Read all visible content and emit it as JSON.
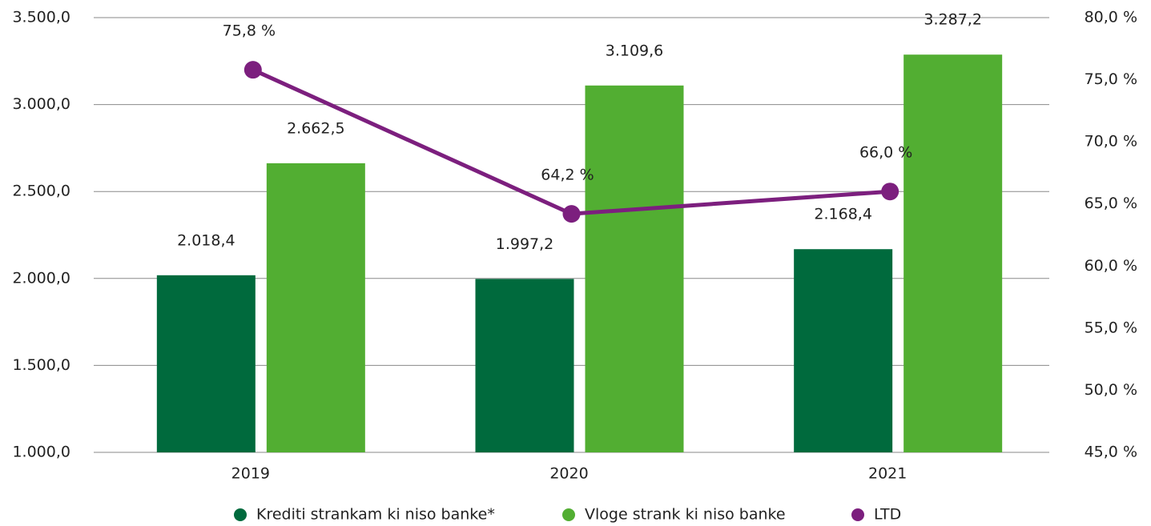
{
  "chart_data": {
    "type": "bar",
    "categories": [
      "2019",
      "2020",
      "2021"
    ],
    "series": [
      {
        "name": "Krediti strankam ki niso banke*",
        "color": "#006a3d",
        "values": [
          2018.4,
          1997.2,
          2168.4
        ],
        "value_labels": [
          "2.018,4",
          "1.997,2",
          "2.168,4"
        ]
      },
      {
        "name": "Vloge strank ki niso banke",
        "color": "#52ae32",
        "values": [
          2662.5,
          3109.6,
          3287.2
        ],
        "value_labels": [
          "2.662,5",
          "3.109,6",
          "3.287,2"
        ]
      },
      {
        "name": "LTD",
        "type": "line",
        "axis": "y2",
        "color": "#7c1f7e",
        "values": [
          75.8,
          64.2,
          66.0
        ],
        "value_labels": [
          "75,8 %",
          "64,2 %",
          "66,0 %"
        ]
      }
    ],
    "ylim": [
      1000,
      3500
    ],
    "yticks": [
      {
        "value": 1000,
        "label": "1.000,0"
      },
      {
        "value": 1500,
        "label": "1.500,0"
      },
      {
        "value": 2000,
        "label": "2.000,0"
      },
      {
        "value": 2500,
        "label": "2.500,0"
      },
      {
        "value": 3000,
        "label": "3.000,0"
      },
      {
        "value": 3500,
        "label": "3.500,0"
      }
    ],
    "y2lim": [
      45,
      80
    ],
    "y2ticks": [
      {
        "value": 45,
        "label": "45,0 %"
      },
      {
        "value": 50,
        "label": "50,0 %"
      },
      {
        "value": 55,
        "label": "55,0 %"
      },
      {
        "value": 60,
        "label": "60,0 %"
      },
      {
        "value": 65,
        "label": "65,0 %"
      },
      {
        "value": 70,
        "label": "70,0 %"
      },
      {
        "value": 75,
        "label": "75,0 %"
      },
      {
        "value": 80,
        "label": "80,0 %"
      }
    ],
    "grid": true
  }
}
